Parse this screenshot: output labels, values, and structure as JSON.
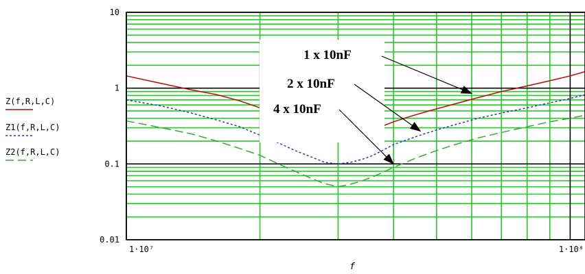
{
  "chart_data": {
    "type": "line",
    "xlabel": "f",
    "x_scale": "log",
    "y_scale": "log",
    "xlim": [
      10000000,
      108000000
    ],
    "ylim": [
      0.01,
      10
    ],
    "grid": true,
    "x_tick_labels": [
      "1·10⁷",
      "1·10⁸"
    ],
    "x_tick_values": [
      10000000,
      100000000
    ],
    "y_tick_labels": [
      "10",
      "1",
      "0.1",
      "0.01"
    ],
    "y_tick_values": [
      10,
      1,
      0.1,
      0.01
    ],
    "legend_placement": "left",
    "series": [
      {
        "name": "Z(f,R,L,C)",
        "color": "#cc0000",
        "style": "solid",
        "x": [
          10000000,
          12000000,
          14000000,
          16000000,
          18000000,
          20000000,
          22000000,
          24000000,
          26000000,
          28000000,
          30000000,
          32000000,
          34000000,
          36000000,
          38000000,
          40000000,
          44000000,
          48000000,
          55000000,
          62000000,
          70000000,
          80000000,
          90000000,
          100000000,
          108000000
        ],
        "values": [
          1.45,
          1.15,
          0.95,
          0.82,
          0.68,
          0.55,
          0.42,
          0.3,
          0.23,
          0.2,
          0.2,
          0.22,
          0.26,
          0.29,
          0.32,
          0.36,
          0.43,
          0.5,
          0.62,
          0.75,
          0.9,
          1.07,
          1.25,
          1.45,
          1.65
        ]
      },
      {
        "name": "Z1(f,R,L,C)",
        "color": "#2233cc",
        "style": "dotted",
        "x": [
          10000000,
          12000000,
          14000000,
          16000000,
          18000000,
          20000000,
          22000000,
          24000000,
          26000000,
          28000000,
          30000000,
          32000000,
          34000000,
          36000000,
          40000000,
          45000000,
          50000000,
          55000000,
          62000000,
          70000000,
          80000000,
          90000000,
          100000000,
          108000000
        ],
        "values": [
          0.7,
          0.58,
          0.47,
          0.38,
          0.31,
          0.24,
          0.19,
          0.15,
          0.125,
          0.105,
          0.1,
          0.105,
          0.115,
          0.13,
          0.18,
          0.23,
          0.28,
          0.33,
          0.4,
          0.47,
          0.55,
          0.64,
          0.73,
          0.82
        ]
      },
      {
        "name": "Z2(f,R,L,C)",
        "color": "#33aa33",
        "style": "dashed",
        "x": [
          10000000,
          12000000,
          14000000,
          16000000,
          18000000,
          20000000,
          22000000,
          24000000,
          26000000,
          28000000,
          30000000,
          32000000,
          34000000,
          36000000,
          40000000,
          45000000,
          50000000,
          55000000,
          62000000,
          70000000,
          80000000,
          90000000,
          100000000,
          108000000
        ],
        "values": [
          0.37,
          0.3,
          0.25,
          0.2,
          0.16,
          0.13,
          0.1,
          0.08,
          0.065,
          0.055,
          0.05,
          0.054,
          0.06,
          0.068,
          0.09,
          0.12,
          0.15,
          0.18,
          0.22,
          0.26,
          0.31,
          0.36,
          0.4,
          0.44
        ]
      }
    ],
    "annotations": [
      {
        "text": "1 x 10nF",
        "target_x": 60000000,
        "target_y": 0.85
      },
      {
        "text": "2 x 10nF",
        "target_x": 46000000,
        "target_y": 0.27
      },
      {
        "text": "4 x 10nF",
        "target_x": 40000000,
        "target_y": 0.1
      }
    ]
  }
}
